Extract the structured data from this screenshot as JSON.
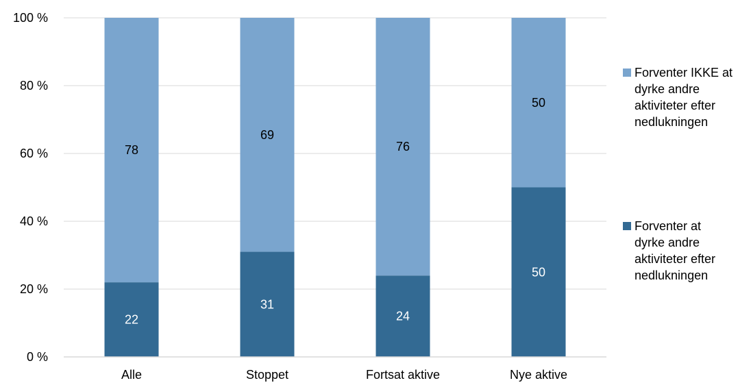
{
  "chart_data": {
    "type": "bar",
    "stacked": true,
    "title": "",
    "xlabel": "",
    "ylabel": "",
    "categories": [
      "Alle",
      "Stoppet",
      "Fortsat aktive",
      "Nye aktive"
    ],
    "ylim": [
      0,
      100
    ],
    "y_ticks": [
      0,
      20,
      40,
      60,
      80,
      100
    ],
    "y_tick_labels": [
      "0 %",
      "20 %",
      "40 %",
      "60 %",
      "80 %",
      "100 %"
    ],
    "grid": true,
    "legend_position": "right",
    "series": [
      {
        "name": "Forventer at dyrke andre aktiviteter efter nedlukningen",
        "legend_lines": [
          "Forventer at",
          "dyrke andre",
          "aktiviteter efter",
          "nedlukningen"
        ],
        "values": [
          22,
          31,
          24,
          50
        ],
        "color": "#336A93",
        "label_color": "#ffffff"
      },
      {
        "name": "Forventer IKKE at dyrke andre aktiviteter efter nedlukningen",
        "legend_lines": [
          "Forventer IKKE at",
          "dyrke andre",
          "aktiviteter efter",
          "nedlukningen"
        ],
        "values": [
          78,
          69,
          76,
          50
        ],
        "color": "#7AA5CE",
        "label_color": "#000000"
      }
    ]
  }
}
